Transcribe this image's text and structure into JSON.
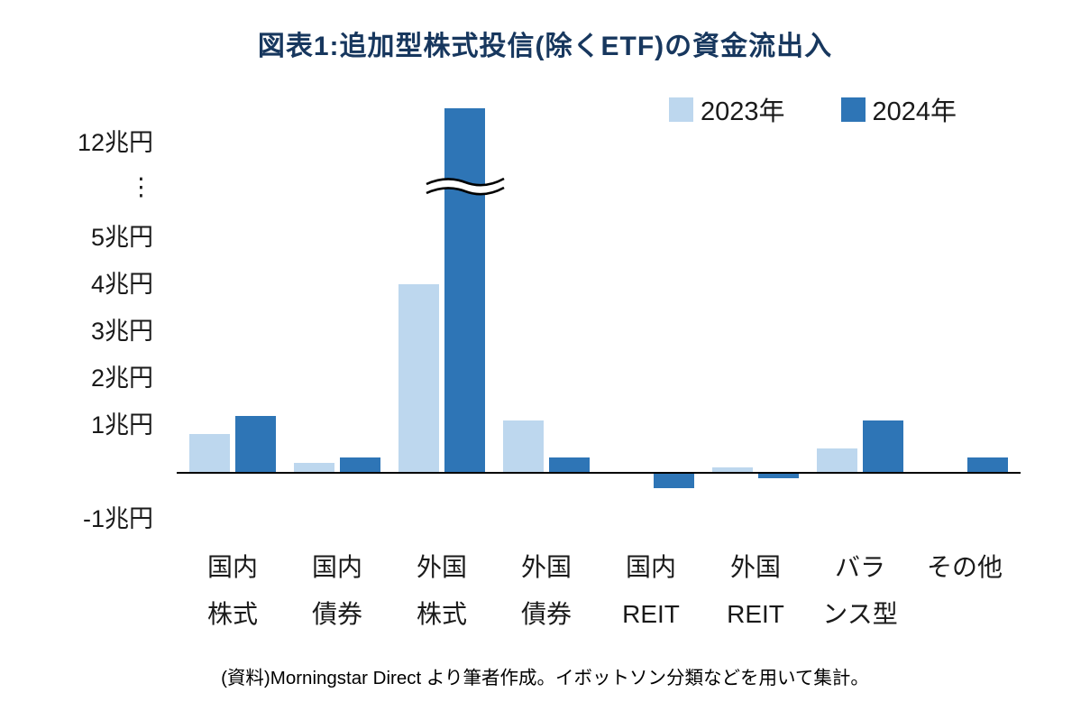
{
  "chart": {
    "title": "図表1:追加型株式投信(除くETF)の資金流出入",
    "source_note": "(資料)Morningstar Direct より筆者作成。イボットソン分類などを用いて集計。"
  },
  "chart_data": {
    "type": "bar",
    "title": "図表1:追加型株式投信(除くETF)の資金流出入",
    "unit": "兆円",
    "categories": [
      {
        "name": "国内株式",
        "line1": "国内",
        "line2": "株式"
      },
      {
        "name": "国内債券",
        "line1": "国内",
        "line2": "債券"
      },
      {
        "name": "外国株式",
        "line1": "外国",
        "line2": "株式"
      },
      {
        "name": "外国債券",
        "line1": "外国",
        "line2": "債券"
      },
      {
        "name": "国内REIT",
        "line1": "国内",
        "line2": "REIT"
      },
      {
        "name": "外国REIT",
        "line1": "外国",
        "line2": "REIT"
      },
      {
        "name": "バランス型",
        "line1": "バラ",
        "line2": "ンス型"
      },
      {
        "name": "その他",
        "line1": "その他",
        "line2": ""
      }
    ],
    "series": [
      {
        "name": "2023年",
        "color": "#BDD7EE",
        "values": [
          0.8,
          0.2,
          4.0,
          1.1,
          0.0,
          0.1,
          0.5,
          0.0
        ]
      },
      {
        "name": "2024年",
        "color": "#2E75B6",
        "values": [
          1.2,
          0.3,
          13.2,
          0.3,
          -0.3,
          -0.1,
          1.1,
          0.3
        ]
      }
    ],
    "y_ticks": [
      {
        "label": "12兆円",
        "value": 12
      },
      {
        "label": "⋮",
        "value": null
      },
      {
        "label": "5兆円",
        "value": 5
      },
      {
        "label": "4兆円",
        "value": 4
      },
      {
        "label": "3兆円",
        "value": 3
      },
      {
        "label": "2兆円",
        "value": 2
      },
      {
        "label": "1兆円",
        "value": 1
      },
      {
        "label": "-1兆円",
        "value": -1
      }
    ],
    "ylim": [
      -1,
      5
    ],
    "axis_break": {
      "between": [
        5,
        12
      ],
      "on_category": "外国株式",
      "on_series": "2024年"
    },
    "legend_position": "top-right",
    "grid": false
  }
}
